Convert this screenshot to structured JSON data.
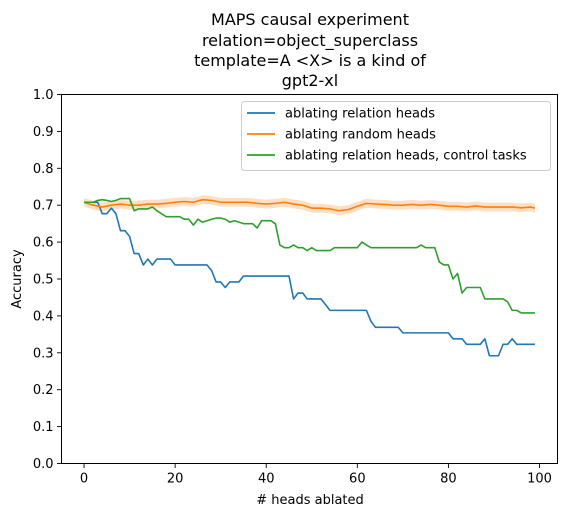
{
  "chart_data": {
    "type": "line",
    "title_lines": [
      "MAPS causal experiment",
      "relation=object_superclass",
      "template=A <X> is a kind of",
      "gpt2-xl"
    ],
    "xlabel": "# heads ablated",
    "ylabel": "Accuracy",
    "xlim": [
      -4.95,
      103.95
    ],
    "ylim": [
      0.0,
      1.0
    ],
    "xticks": [
      0,
      20,
      40,
      60,
      80,
      100
    ],
    "yticks": [
      0.0,
      0.1,
      0.2,
      0.3,
      0.4,
      0.5,
      0.6,
      0.7,
      0.8,
      0.9,
      1.0
    ],
    "xtick_labels": [
      "0",
      "20",
      "40",
      "60",
      "80",
      "100"
    ],
    "ytick_labels": [
      "0.0",
      "0.1",
      "0.2",
      "0.3",
      "0.4",
      "0.5",
      "0.6",
      "0.7",
      "0.8",
      "0.9",
      "1.0"
    ],
    "grid": false,
    "legend_position": "upper right",
    "series": [
      {
        "name": "ablating relation heads",
        "color": "#1f77b4",
        "points": [
          [
            0,
            0.708
          ],
          [
            1,
            0.708
          ],
          [
            2,
            0.708
          ],
          [
            3,
            0.708
          ],
          [
            4,
            0.677
          ],
          [
            5,
            0.677
          ],
          [
            6,
            0.692
          ],
          [
            7,
            0.677
          ],
          [
            8,
            0.631
          ],
          [
            9,
            0.631
          ],
          [
            10,
            0.615
          ],
          [
            11,
            0.569
          ],
          [
            12,
            0.569
          ],
          [
            13,
            0.538
          ],
          [
            14,
            0.554
          ],
          [
            15,
            0.538
          ],
          [
            16,
            0.554
          ],
          [
            17,
            0.554
          ],
          [
            18,
            0.554
          ],
          [
            19,
            0.554
          ],
          [
            20,
            0.538
          ],
          [
            21,
            0.538
          ],
          [
            22,
            0.538
          ],
          [
            23,
            0.538
          ],
          [
            24,
            0.538
          ],
          [
            25,
            0.538
          ],
          [
            26,
            0.538
          ],
          [
            27,
            0.538
          ],
          [
            28,
            0.523
          ],
          [
            29,
            0.492
          ],
          [
            30,
            0.492
          ],
          [
            31,
            0.477
          ],
          [
            32,
            0.492
          ],
          [
            33,
            0.492
          ],
          [
            34,
            0.492
          ],
          [
            35,
            0.508
          ],
          [
            36,
            0.508
          ],
          [
            37,
            0.508
          ],
          [
            38,
            0.508
          ],
          [
            39,
            0.508
          ],
          [
            40,
            0.508
          ],
          [
            41,
            0.508
          ],
          [
            42,
            0.508
          ],
          [
            43,
            0.508
          ],
          [
            44,
            0.508
          ],
          [
            45,
            0.508
          ],
          [
            46,
            0.446
          ],
          [
            47,
            0.462
          ],
          [
            48,
            0.462
          ],
          [
            49,
            0.446
          ],
          [
            50,
            0.446
          ],
          [
            51,
            0.446
          ],
          [
            52,
            0.446
          ],
          [
            53,
            0.431
          ],
          [
            54,
            0.415
          ],
          [
            55,
            0.415
          ],
          [
            56,
            0.415
          ],
          [
            57,
            0.415
          ],
          [
            58,
            0.415
          ],
          [
            59,
            0.415
          ],
          [
            60,
            0.415
          ],
          [
            61,
            0.415
          ],
          [
            62,
            0.415
          ],
          [
            63,
            0.385
          ],
          [
            64,
            0.369
          ],
          [
            65,
            0.369
          ],
          [
            66,
            0.369
          ],
          [
            67,
            0.369
          ],
          [
            68,
            0.369
          ],
          [
            69,
            0.369
          ],
          [
            70,
            0.354
          ],
          [
            71,
            0.354
          ],
          [
            72,
            0.354
          ],
          [
            73,
            0.354
          ],
          [
            74,
            0.354
          ],
          [
            75,
            0.354
          ],
          [
            76,
            0.354
          ],
          [
            77,
            0.354
          ],
          [
            78,
            0.354
          ],
          [
            79,
            0.354
          ],
          [
            80,
            0.354
          ],
          [
            81,
            0.338
          ],
          [
            82,
            0.338
          ],
          [
            83,
            0.338
          ],
          [
            84,
            0.323
          ],
          [
            85,
            0.323
          ],
          [
            86,
            0.323
          ],
          [
            87,
            0.323
          ],
          [
            88,
            0.338
          ],
          [
            89,
            0.292
          ],
          [
            90,
            0.292
          ],
          [
            91,
            0.292
          ],
          [
            92,
            0.323
          ],
          [
            93,
            0.323
          ],
          [
            94,
            0.338
          ],
          [
            95,
            0.323
          ],
          [
            96,
            0.323
          ],
          [
            97,
            0.323
          ],
          [
            98,
            0.323
          ],
          [
            99,
            0.323
          ]
        ]
      },
      {
        "name": "ablating random heads",
        "color": "#ff7f0e",
        "band_halfwidth": 0.012,
        "points": [
          [
            0,
            0.708
          ],
          [
            2,
            0.7
          ],
          [
            4,
            0.695
          ],
          [
            6,
            0.7
          ],
          [
            8,
            0.703
          ],
          [
            10,
            0.7
          ],
          [
            12,
            0.7
          ],
          [
            14,
            0.703
          ],
          [
            16,
            0.703
          ],
          [
            18,
            0.705
          ],
          [
            20,
            0.708
          ],
          [
            22,
            0.71
          ],
          [
            24,
            0.708
          ],
          [
            26,
            0.715
          ],
          [
            28,
            0.713
          ],
          [
            30,
            0.708
          ],
          [
            32,
            0.708
          ],
          [
            34,
            0.708
          ],
          [
            36,
            0.708
          ],
          [
            38,
            0.705
          ],
          [
            40,
            0.703
          ],
          [
            42,
            0.705
          ],
          [
            44,
            0.708
          ],
          [
            46,
            0.703
          ],
          [
            48,
            0.7
          ],
          [
            50,
            0.692
          ],
          [
            52,
            0.692
          ],
          [
            54,
            0.69
          ],
          [
            56,
            0.685
          ],
          [
            58,
            0.688
          ],
          [
            60,
            0.697
          ],
          [
            62,
            0.705
          ],
          [
            64,
            0.703
          ],
          [
            66,
            0.702
          ],
          [
            68,
            0.7
          ],
          [
            70,
            0.7
          ],
          [
            72,
            0.702
          ],
          [
            74,
            0.7
          ],
          [
            76,
            0.702
          ],
          [
            78,
            0.7
          ],
          [
            80,
            0.697
          ],
          [
            82,
            0.697
          ],
          [
            84,
            0.695
          ],
          [
            86,
            0.698
          ],
          [
            88,
            0.695
          ],
          [
            90,
            0.695
          ],
          [
            92,
            0.695
          ],
          [
            94,
            0.695
          ],
          [
            96,
            0.693
          ],
          [
            98,
            0.695
          ],
          [
            99,
            0.692
          ]
        ]
      },
      {
        "name": "ablating relation heads, control tasks",
        "color": "#2ca02c",
        "points": [
          [
            0,
            0.708
          ],
          [
            2,
            0.708
          ],
          [
            3,
            0.713
          ],
          [
            4,
            0.715
          ],
          [
            5,
            0.713
          ],
          [
            6,
            0.71
          ],
          [
            7,
            0.713
          ],
          [
            8,
            0.718
          ],
          [
            9,
            0.718
          ],
          [
            10,
            0.718
          ],
          [
            11,
            0.685
          ],
          [
            12,
            0.69
          ],
          [
            13,
            0.69
          ],
          [
            14,
            0.69
          ],
          [
            15,
            0.695
          ],
          [
            16,
            0.685
          ],
          [
            17,
            0.677
          ],
          [
            18,
            0.669
          ],
          [
            19,
            0.669
          ],
          [
            20,
            0.669
          ],
          [
            21,
            0.669
          ],
          [
            22,
            0.662
          ],
          [
            23,
            0.662
          ],
          [
            24,
            0.646
          ],
          [
            25,
            0.662
          ],
          [
            26,
            0.654
          ],
          [
            27,
            0.658
          ],
          [
            28,
            0.662
          ],
          [
            29,
            0.665
          ],
          [
            30,
            0.665
          ],
          [
            31,
            0.662
          ],
          [
            32,
            0.654
          ],
          [
            33,
            0.658
          ],
          [
            34,
            0.654
          ],
          [
            35,
            0.65
          ],
          [
            36,
            0.65
          ],
          [
            37,
            0.65
          ],
          [
            38,
            0.638
          ],
          [
            39,
            0.658
          ],
          [
            40,
            0.658
          ],
          [
            41,
            0.658
          ],
          [
            42,
            0.65
          ],
          [
            43,
            0.592
          ],
          [
            44,
            0.585
          ],
          [
            45,
            0.585
          ],
          [
            46,
            0.592
          ],
          [
            47,
            0.585
          ],
          [
            48,
            0.585
          ],
          [
            49,
            0.577
          ],
          [
            50,
            0.585
          ],
          [
            51,
            0.577
          ],
          [
            52,
            0.577
          ],
          [
            53,
            0.577
          ],
          [
            54,
            0.577
          ],
          [
            55,
            0.585
          ],
          [
            56,
            0.585
          ],
          [
            57,
            0.585
          ],
          [
            58,
            0.585
          ],
          [
            59,
            0.585
          ],
          [
            60,
            0.585
          ],
          [
            61,
            0.6
          ],
          [
            62,
            0.592
          ],
          [
            63,
            0.585
          ],
          [
            64,
            0.585
          ],
          [
            65,
            0.585
          ],
          [
            66,
            0.585
          ],
          [
            67,
            0.585
          ],
          [
            68,
            0.585
          ],
          [
            69,
            0.585
          ],
          [
            70,
            0.585
          ],
          [
            71,
            0.585
          ],
          [
            72,
            0.585
          ],
          [
            73,
            0.585
          ],
          [
            74,
            0.592
          ],
          [
            75,
            0.585
          ],
          [
            76,
            0.585
          ],
          [
            77,
            0.585
          ],
          [
            78,
            0.546
          ],
          [
            79,
            0.538
          ],
          [
            80,
            0.538
          ],
          [
            81,
            0.5
          ],
          [
            82,
            0.515
          ],
          [
            83,
            0.462
          ],
          [
            84,
            0.477
          ],
          [
            85,
            0.477
          ],
          [
            86,
            0.477
          ],
          [
            87,
            0.477
          ],
          [
            88,
            0.446
          ],
          [
            89,
            0.446
          ],
          [
            90,
            0.446
          ],
          [
            91,
            0.446
          ],
          [
            92,
            0.446
          ],
          [
            93,
            0.438
          ],
          [
            94,
            0.415
          ],
          [
            95,
            0.415
          ],
          [
            96,
            0.408
          ],
          [
            97,
            0.408
          ],
          [
            98,
            0.408
          ],
          [
            99,
            0.408
          ]
        ]
      }
    ]
  }
}
